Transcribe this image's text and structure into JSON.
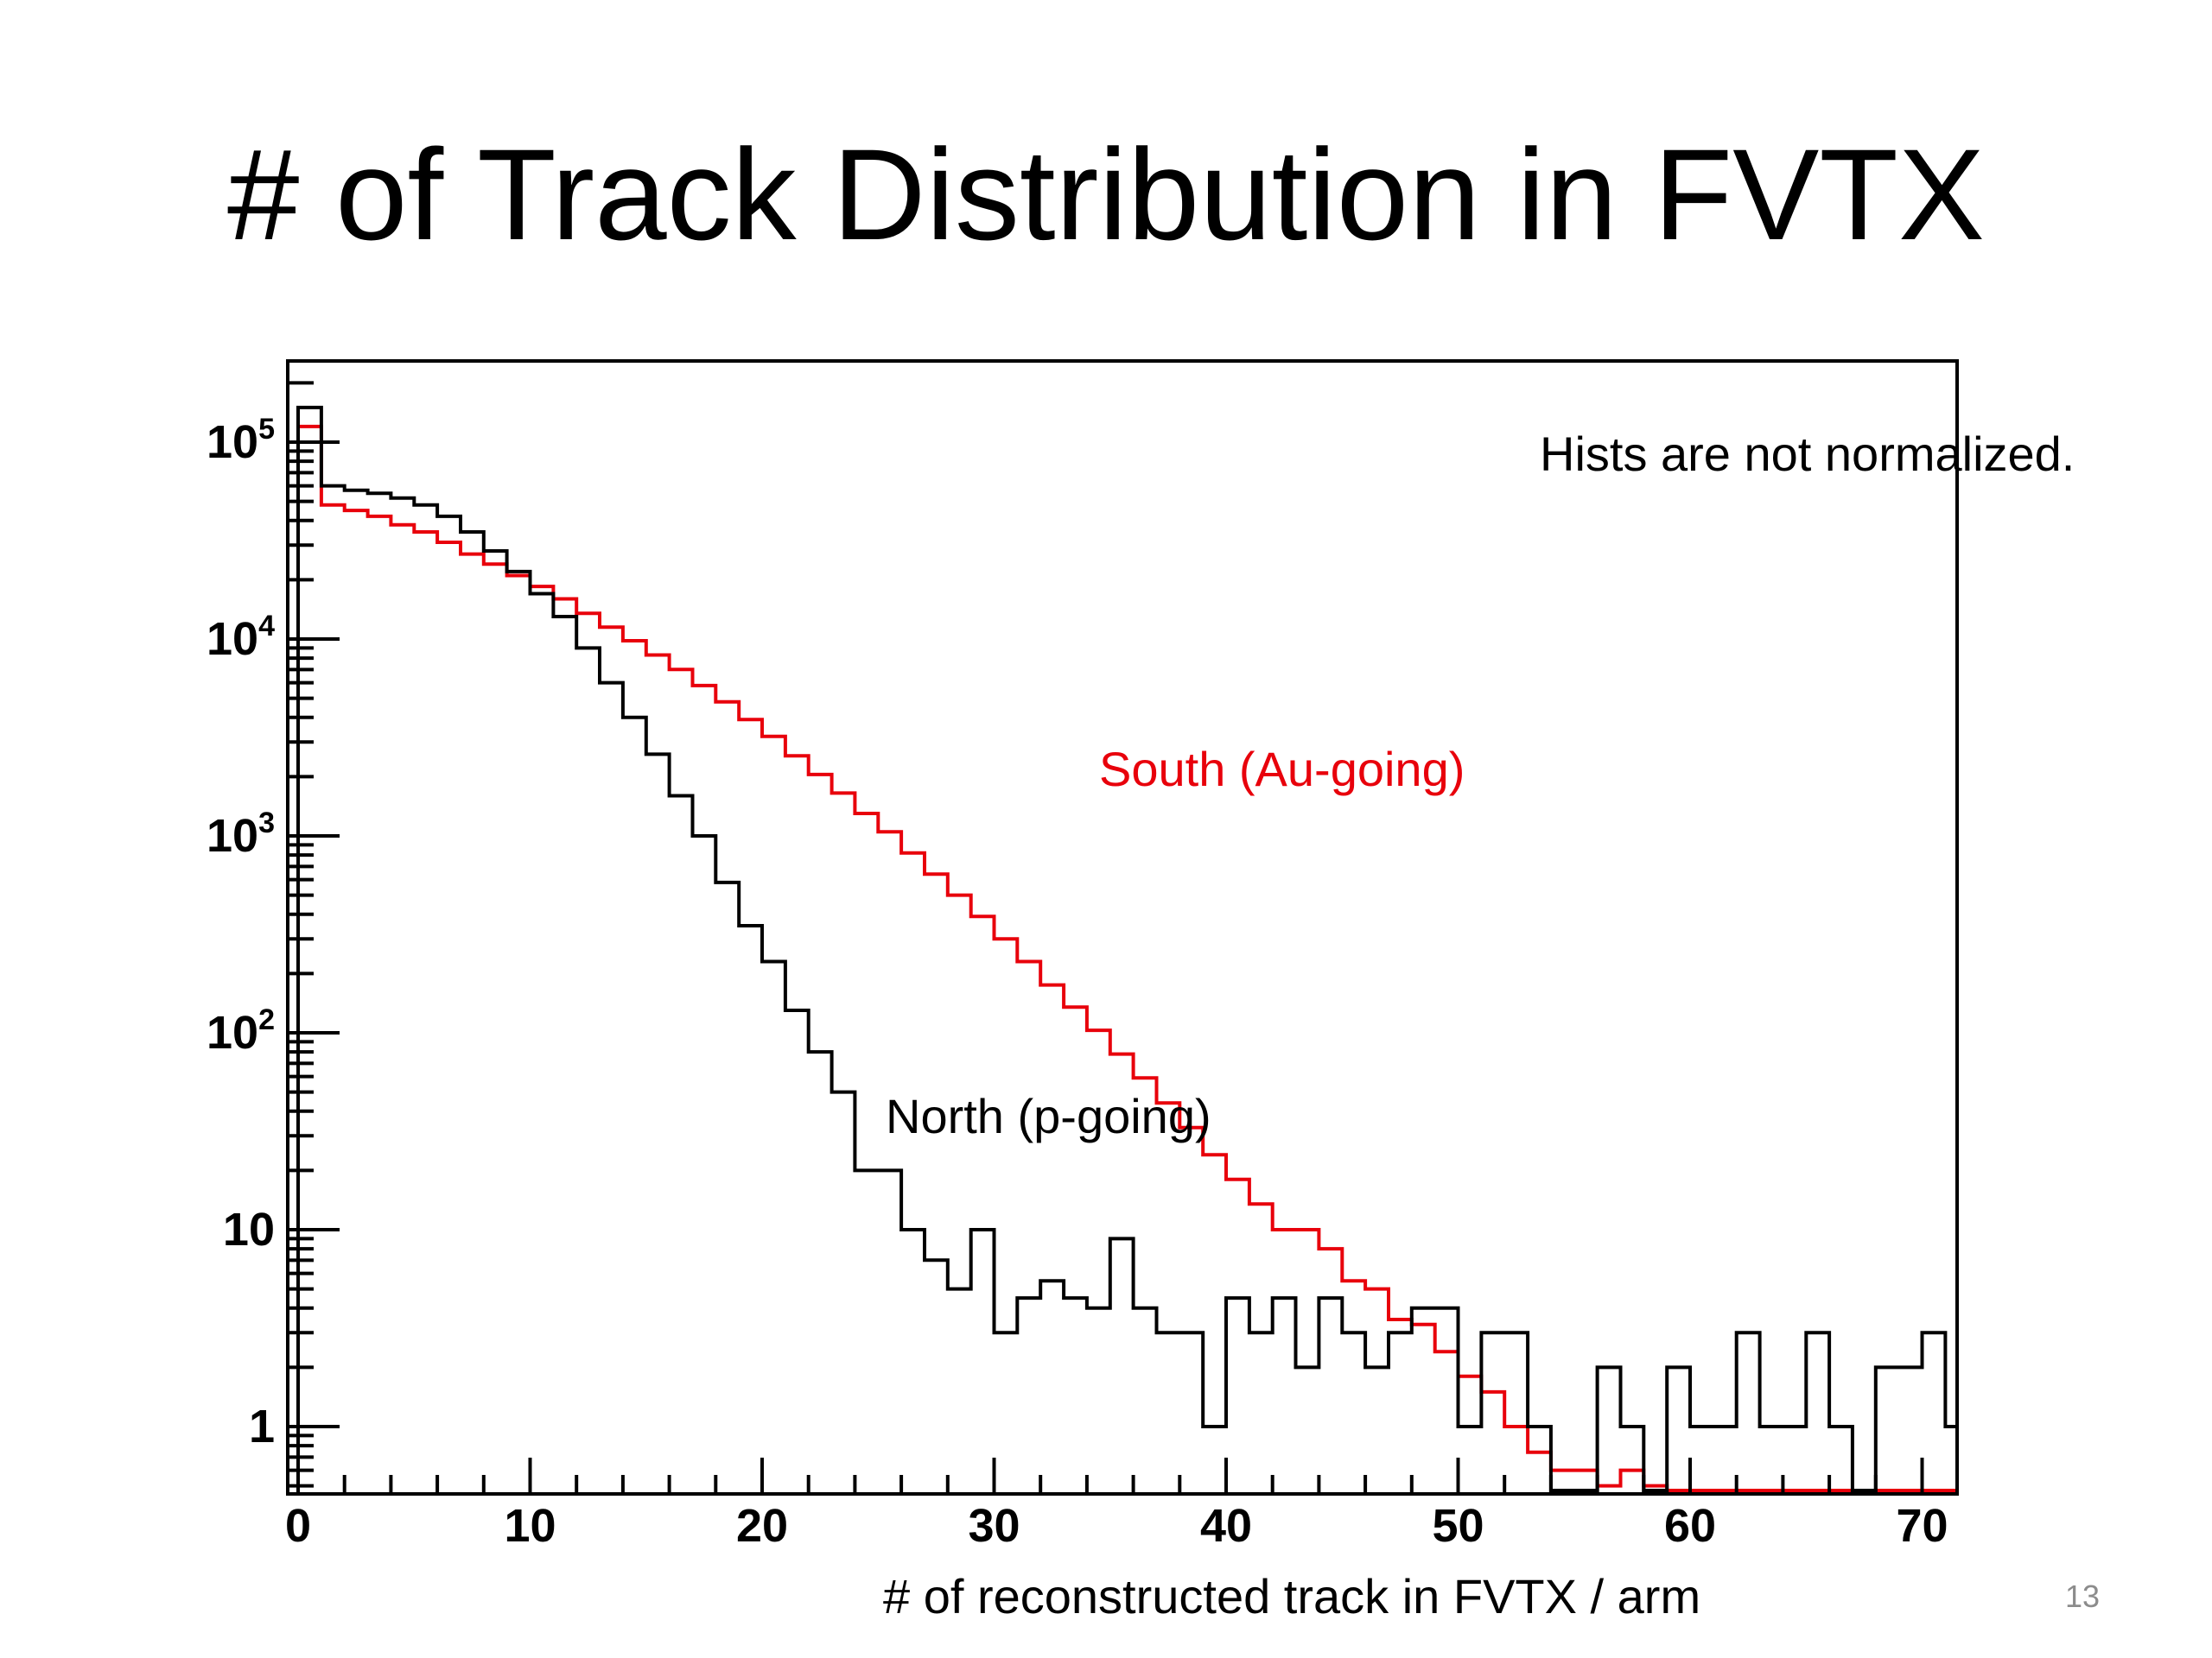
{
  "slide": {
    "title": "# of Track Distribution in FVTX",
    "page_number": "13"
  },
  "chart_data": {
    "type": "line",
    "xlabel": "# of reconstructed track in FVTX / arm",
    "ylabel": "",
    "xlim": [
      0,
      72
    ],
    "ylim": [
      0.3,
      250000
    ],
    "y_scale": "log",
    "grid": false,
    "x_ticks": [
      "0",
      "10",
      "20",
      "30",
      "40",
      "50",
      "60",
      "70"
    ],
    "y_ticks": [
      {
        "value": 1,
        "label": "1"
      },
      {
        "value": 10,
        "label": "10"
      },
      {
        "value": 100,
        "label": "10",
        "sup": "2"
      },
      {
        "value": 1000,
        "label": "10",
        "sup": "3"
      },
      {
        "value": 10000,
        "label": "10",
        "sup": "4"
      },
      {
        "value": 100000,
        "label": "10",
        "sup": "5"
      }
    ],
    "annotations": {
      "note": "Hists are not normalized.",
      "south_label": "South (Au-going)",
      "north_label": "North (p-going)"
    },
    "series": [
      {
        "name": "South (Au-going)",
        "color": "#e8000b",
        "bin_width": 1,
        "values": [
          120000,
          48000,
          45000,
          42000,
          38000,
          35000,
          31000,
          27000,
          24000,
          21000,
          18500,
          16000,
          13500,
          11500,
          9800,
          8300,
          7000,
          5800,
          4800,
          3900,
          3200,
          2550,
          2050,
          1650,
          1300,
          1050,
          820,
          640,
          500,
          390,
          300,
          230,
          175,
          135,
          103,
          78,
          59,
          44,
          33,
          24,
          18,
          13.5,
          10,
          10,
          8,
          5.5,
          5,
          3.5,
          3.3,
          2.4,
          1.8,
          1.5,
          1.0,
          0.74,
          0.6,
          0.6,
          0.5,
          0.6,
          0.5,
          0.28,
          0.18,
          0.22,
          0.14,
          0.08,
          0.07,
          0.05,
          0.02,
          0.04,
          0.04,
          0.02,
          0.06,
          0.04
        ]
      },
      {
        "name": "North (p-going)",
        "color": "#000000",
        "bin_width": 1,
        "values": [
          150000,
          60000,
          57000,
          55000,
          52000,
          48000,
          42000,
          35000,
          28000,
          22000,
          17000,
          13000,
          9000,
          6000,
          4000,
          2600,
          1600,
          1000,
          580,
          350,
          230,
          130,
          80,
          50,
          20,
          20,
          10,
          7,
          5,
          10,
          3,
          4.5,
          5.5,
          4.5,
          4,
          9,
          4,
          3,
          3,
          1,
          4.5,
          3,
          4.5,
          2,
          4.5,
          3,
          2,
          3,
          4,
          4,
          1,
          3,
          3,
          1,
          0.1,
          0.1,
          2,
          1,
          0.1,
          2,
          1,
          1,
          3,
          1,
          1,
          3,
          1,
          0.1,
          2,
          2,
          3,
          1
        ]
      }
    ]
  }
}
